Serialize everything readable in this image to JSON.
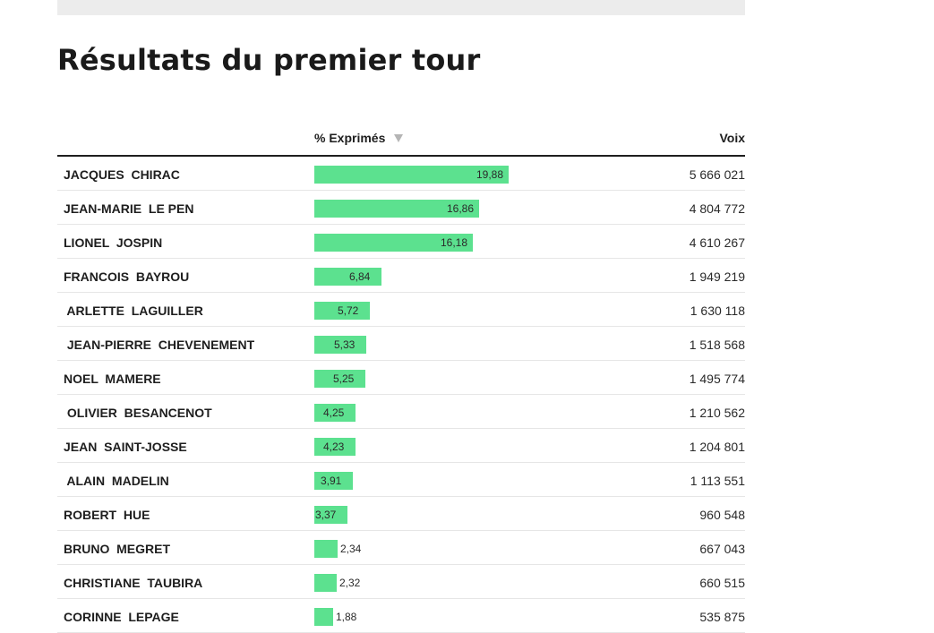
{
  "title": "Résultats du premier tour",
  "table": {
    "columns": {
      "pct": "% Exprimés",
      "votes": "Voix"
    },
    "sort_icon": "triangle-down-icon",
    "bar_color": "#5ce18f",
    "max_pct": 19.88,
    "rows": [
      {
        "name": "JACQUES  CHIRAC",
        "pct": "19,88",
        "pct_value": 19.88,
        "votes": "5 666 021"
      },
      {
        "name": "JEAN-MARIE  LE PEN",
        "pct": "16,86",
        "pct_value": 16.86,
        "votes": "4 804 772"
      },
      {
        "name": "LIONEL  JOSPIN",
        "pct": "16,18",
        "pct_value": 16.18,
        "votes": "4 610 267"
      },
      {
        "name": "FRANCOIS  BAYROU",
        "pct": "6,84",
        "pct_value": 6.84,
        "votes": "1 949 219"
      },
      {
        "name": " ARLETTE  LAGUILLER",
        "pct": "5,72",
        "pct_value": 5.72,
        "votes": "1 630 118"
      },
      {
        "name": " JEAN-PIERRE  CHEVENEMENT",
        "pct": "5,33",
        "pct_value": 5.33,
        "votes": "1 518 568"
      },
      {
        "name": "NOEL  MAMERE",
        "pct": "5,25",
        "pct_value": 5.25,
        "votes": "1 495 774"
      },
      {
        "name": " OLIVIER  BESANCENOT",
        "pct": "4,25",
        "pct_value": 4.25,
        "votes": "1 210 562"
      },
      {
        "name": "JEAN  SAINT-JOSSE",
        "pct": "4,23",
        "pct_value": 4.23,
        "votes": "1 204 801"
      },
      {
        "name": " ALAIN  MADELIN",
        "pct": "3,91",
        "pct_value": 3.91,
        "votes": "1 113 551"
      },
      {
        "name": "ROBERT  HUE",
        "pct": "3,37",
        "pct_value": 3.37,
        "votes": "960 548"
      },
      {
        "name": "BRUNO  MEGRET",
        "pct": "2,34",
        "pct_value": 2.34,
        "votes": "667 043"
      },
      {
        "name": "CHRISTIANE  TAUBIRA",
        "pct": "2,32",
        "pct_value": 2.32,
        "votes": "660 515"
      },
      {
        "name": "CORINNE  LEPAGE",
        "pct": "1,88",
        "pct_value": 1.88,
        "votes": "535 875"
      }
    ]
  }
}
